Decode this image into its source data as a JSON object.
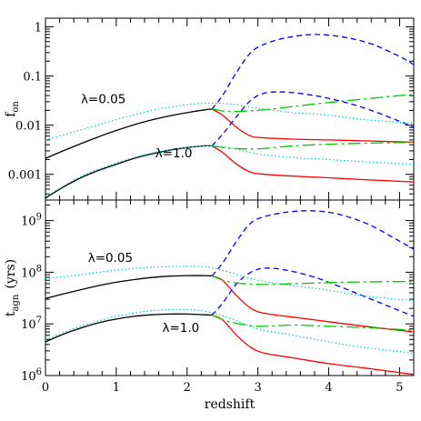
{
  "chart_data": [
    {
      "type": "line",
      "ylabel": "f",
      "ylabel_sub": "on",
      "xlim": [
        0,
        5.2
      ],
      "ylim": [
        0.0003,
        1.5
      ],
      "yscale": "log",
      "y_ticks": [
        {
          "value": 0.001,
          "label": "0.001"
        },
        {
          "value": 0.01,
          "label": "0.01"
        },
        {
          "value": 0.1,
          "label": "0.1"
        },
        {
          "value": 1,
          "label": "1"
        }
      ],
      "annotations": [
        {
          "text": "λ=0.05",
          "x": 0.5,
          "y": 0.028
        },
        {
          "text": "λ=1.0",
          "x": 1.55,
          "y": 0.0022
        }
      ],
      "series": [
        {
          "style": "solid",
          "color": "#000000",
          "x": [
            0,
            0.25,
            0.5,
            0.75,
            1,
            1.25,
            1.5,
            1.75,
            2,
            2.25,
            2.35
          ],
          "y": [
            0.0021,
            0.003,
            0.0042,
            0.0058,
            0.0078,
            0.0102,
            0.0128,
            0.0154,
            0.018,
            0.0205,
            0.0212
          ]
        },
        {
          "style": "solid",
          "color": "#000000",
          "x": [
            0,
            0.25,
            0.5,
            0.75,
            1,
            1.25,
            1.5,
            1.75,
            2,
            2.25,
            2.35
          ],
          "y": [
            0.00033,
            0.00055,
            0.00085,
            0.0012,
            0.0016,
            0.0021,
            0.0026,
            0.0031,
            0.0035,
            0.0038,
            0.0038
          ]
        },
        {
          "style": "solid",
          "color": "#ff0000",
          "x": [
            2.35,
            2.5,
            2.7,
            2.9,
            3.1,
            3.5,
            4,
            4.5,
            5.2
          ],
          "y": [
            0.0212,
            0.016,
            0.009,
            0.006,
            0.0055,
            0.0052,
            0.005,
            0.0048,
            0.0045
          ]
        },
        {
          "style": "solid",
          "color": "#ff0000",
          "x": [
            2.35,
            2.5,
            2.7,
            2.9,
            3.1,
            3.5,
            4,
            4.5,
            5.2
          ],
          "y": [
            0.0038,
            0.0028,
            0.0016,
            0.0011,
            0.001,
            0.00092,
            0.00085,
            0.00078,
            0.0007
          ]
        },
        {
          "style": "short-dash",
          "color": "#0000ff",
          "x": [
            2.35,
            2.5,
            2.7,
            2.9,
            3.1,
            3.4,
            3.8,
            4.2,
            4.6,
            5.0,
            5.2
          ],
          "y": [
            0.0212,
            0.04,
            0.12,
            0.3,
            0.45,
            0.6,
            0.7,
            0.62,
            0.45,
            0.25,
            0.17
          ]
        },
        {
          "style": "short-dash",
          "color": "#0000ff",
          "x": [
            2.35,
            2.5,
            2.7,
            2.9,
            3.1,
            3.4,
            3.8,
            4.2,
            4.6,
            5.0,
            5.2
          ],
          "y": [
            0.0038,
            0.0065,
            0.015,
            0.032,
            0.045,
            0.047,
            0.04,
            0.03,
            0.02,
            0.012,
            0.009
          ]
        },
        {
          "style": "long-dash",
          "color": "#00cc00",
          "x": [
            2.35,
            2.6,
            3.0,
            3.5,
            4,
            4.5,
            5,
            5.2
          ],
          "y": [
            0.0212,
            0.019,
            0.02,
            0.024,
            0.029,
            0.034,
            0.04,
            0.042
          ]
        },
        {
          "style": "long-dash",
          "color": "#00cc00",
          "x": [
            2.35,
            2.6,
            3.0,
            3.5,
            4,
            4.5,
            5,
            5.2
          ],
          "y": [
            0.0038,
            0.0034,
            0.0033,
            0.0038,
            0.0041,
            0.0043,
            0.0044,
            0.0045
          ]
        },
        {
          "style": "dotted",
          "color": "#00cccc",
          "x": [
            0,
            0.5,
            1,
            1.5,
            2,
            2.3,
            2.6,
            3,
            3.5,
            4,
            4.5,
            5.2
          ],
          "y": [
            0.005,
            0.008,
            0.013,
            0.02,
            0.026,
            0.028,
            0.027,
            0.022,
            0.018,
            0.016,
            0.013,
            0.011
          ]
        },
        {
          "style": "dotted",
          "color": "#00cccc",
          "x": [
            0,
            0.5,
            1,
            1.5,
            2,
            2.3,
            2.6,
            3,
            3.5,
            4,
            4.5,
            5.2
          ],
          "y": [
            0.00035,
            0.0009,
            0.0017,
            0.0027,
            0.0035,
            0.0038,
            0.0035,
            0.0026,
            0.0022,
            0.002,
            0.0018,
            0.0016
          ]
        }
      ]
    },
    {
      "type": "line",
      "xlabel": "redshift",
      "ylabel": "t",
      "ylabel_sub": "agn",
      "ylabel_unit": "(yrs)",
      "xlim": [
        0,
        5.2
      ],
      "ylim": [
        1000000,
        2500000000
      ],
      "yscale": "log",
      "x_ticks": [
        {
          "value": 0,
          "label": "0"
        },
        {
          "value": 1,
          "label": "1"
        },
        {
          "value": 2,
          "label": "2"
        },
        {
          "value": 3,
          "label": "3"
        },
        {
          "value": 4,
          "label": "4"
        },
        {
          "value": 5,
          "label": "5"
        }
      ],
      "y_ticks": [
        {
          "value": 1000000,
          "base": "10",
          "exp": "6"
        },
        {
          "value": 10000000,
          "base": "10",
          "exp": "7"
        },
        {
          "value": 100000000,
          "base": "10",
          "exp": "8"
        },
        {
          "value": 1000000000,
          "base": "10",
          "exp": "9"
        }
      ],
      "annotations": [
        {
          "text": "λ=0.05",
          "x": 0.6,
          "y": 160000000
        },
        {
          "text": "λ=1.0",
          "x": 1.65,
          "y": 7000000
        }
      ],
      "series": [
        {
          "style": "solid",
          "color": "#000000",
          "x": [
            0,
            0.25,
            0.5,
            0.75,
            1,
            1.25,
            1.5,
            1.75,
            2,
            2.25,
            2.35
          ],
          "y": [
            31000000,
            38000000,
            46000000,
            55000000,
            64000000,
            72000000,
            79000000,
            84000000,
            86000000,
            86000000,
            85000000
          ]
        },
        {
          "style": "solid",
          "color": "#000000",
          "x": [
            0,
            0.25,
            0.5,
            0.75,
            1,
            1.25,
            1.5,
            1.75,
            2,
            2.25,
            2.35
          ],
          "y": [
            4500000,
            6300000,
            8300000,
            10500000,
            12400000,
            14000000,
            15000000,
            15500000,
            15500000,
            15000000,
            14800000
          ]
        },
        {
          "style": "solid",
          "color": "#ff0000",
          "x": [
            2.35,
            2.5,
            2.7,
            2.9,
            3.1,
            3.5,
            4,
            4.5,
            5.2
          ],
          "y": [
            85000000,
            70000000,
            35000000,
            20000000,
            16000000,
            13500000,
            11000000,
            9000000,
            7000000
          ]
        },
        {
          "style": "solid",
          "color": "#ff0000",
          "x": [
            2.35,
            2.5,
            2.7,
            2.9,
            3.1,
            3.5,
            4,
            4.5,
            5.2
          ],
          "y": [
            14800000,
            12000000,
            6000000,
            3500000,
            2700000,
            2200000,
            1700000,
            1400000,
            1050000
          ]
        },
        {
          "style": "short-dash",
          "color": "#0000ff",
          "x": [
            2.35,
            2.5,
            2.7,
            2.9,
            3.1,
            3.4,
            3.7,
            4.0,
            4.3,
            4.6,
            5.0,
            5.2
          ],
          "y": [
            85000000,
            150000000,
            400000000,
            900000000,
            1200000000,
            1450000000,
            1550000000,
            1450000000,
            1150000000,
            800000000,
            400000000,
            280000000
          ]
        },
        {
          "style": "short-dash",
          "color": "#0000ff",
          "x": [
            2.35,
            2.5,
            2.7,
            2.9,
            3.1,
            3.4,
            3.8,
            4.2,
            4.6,
            5.0,
            5.2
          ],
          "y": [
            14800000,
            25000000,
            60000000,
            100000000,
            120000000,
            110000000,
            80000000,
            50000000,
            30000000,
            18000000,
            14000000
          ]
        },
        {
          "style": "long-dash",
          "color": "#00cc00",
          "x": [
            2.35,
            2.6,
            3.0,
            3.5,
            4,
            4.5,
            5,
            5.2
          ],
          "y": [
            85000000,
            65000000,
            58000000,
            60000000,
            63000000,
            65000000,
            66000000,
            66000000
          ]
        },
        {
          "style": "long-dash",
          "color": "#00cc00",
          "x": [
            2.35,
            2.6,
            3.0,
            3.5,
            4,
            4.5,
            5,
            5.2
          ],
          "y": [
            14800000,
            11000000,
            9000000,
            9500000,
            9000000,
            8500000,
            7800000,
            7500000
          ]
        },
        {
          "style": "dotted",
          "color": "#00cccc",
          "x": [
            0,
            0.5,
            1,
            1.5,
            2,
            2.3,
            2.6,
            3,
            3.5,
            4,
            4.5,
            5.2
          ],
          "y": [
            75000000,
            90000000,
            110000000,
            125000000,
            130000000,
            125000000,
            100000000,
            70000000,
            55000000,
            45000000,
            35000000,
            28000000
          ]
        },
        {
          "style": "dotted",
          "color": "#00cccc",
          "x": [
            0,
            0.5,
            1,
            1.5,
            2,
            2.3,
            2.6,
            3,
            3.5,
            4,
            4.5,
            5.2
          ],
          "y": [
            5000000,
            9000000,
            14000000,
            18000000,
            19000000,
            17000000,
            13000000,
            8000000,
            6000000,
            4500000,
            3500000,
            2700000
          ]
        }
      ]
    }
  ]
}
